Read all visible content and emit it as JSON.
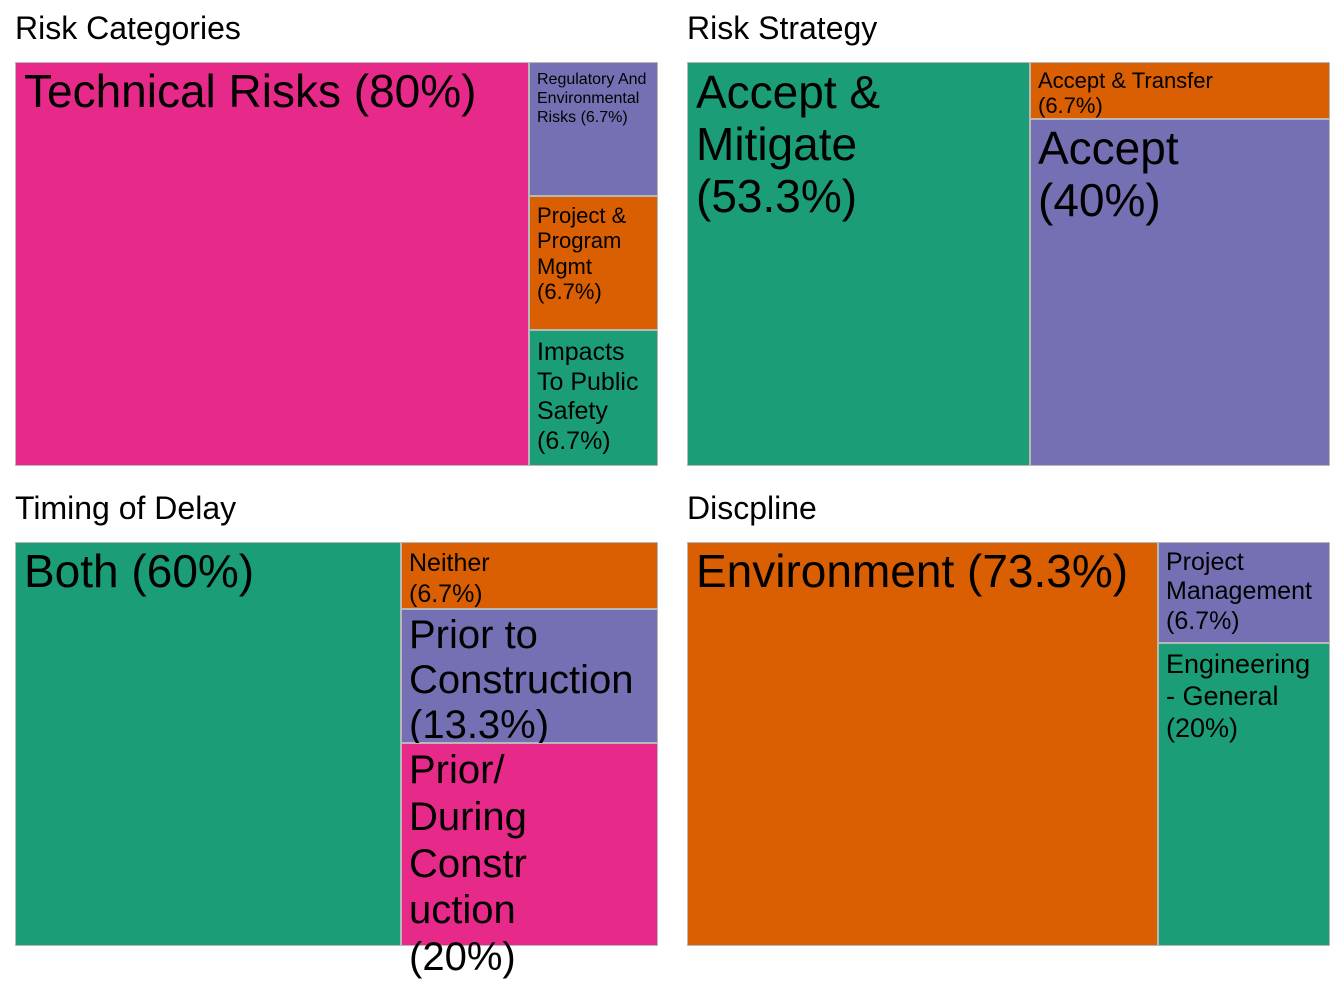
{
  "chart_data": [
    {
      "type": "treemap",
      "title": "Risk Categories",
      "tiles": [
        {
          "label": "Technical Risks",
          "value": 80,
          "value_label": "(80%)",
          "color": "#E7298A"
        },
        {
          "label": "Regulatory And Environmental Risks",
          "value": 6.7,
          "value_label": "(6.7%)",
          "color": "#7570B3"
        },
        {
          "label": "Project & Program Mgmt",
          "value": 6.7,
          "value_label": "(6.7%)",
          "color": "#D95F02"
        },
        {
          "label": "Impacts To Public Safety",
          "value": 6.7,
          "value_label": "(6.7%)",
          "color": "#1B9E77"
        }
      ]
    },
    {
      "type": "treemap",
      "title": "Risk Strategy",
      "tiles": [
        {
          "label": "Accept & Mitigate",
          "value": 53.3,
          "value_label": "(53.3%)",
          "color": "#1B9E77"
        },
        {
          "label": "Accept & Transfer",
          "value": 6.7,
          "value_label": "(6.7%)",
          "color": "#D95F02"
        },
        {
          "label": "Accept",
          "value": 40,
          "value_label": "(40%)",
          "color": "#7570B3"
        }
      ]
    },
    {
      "type": "treemap",
      "title": "Timing of Delay",
      "tiles": [
        {
          "label": "Both",
          "value": 60,
          "value_label": "(60%)",
          "color": "#1B9E77"
        },
        {
          "label": "Neither",
          "value": 6.7,
          "value_label": "(6.7%)",
          "color": "#D95F02"
        },
        {
          "label": "Prior to Construction",
          "value": 13.3,
          "value_label": "(13.3%)",
          "color": "#7570B3"
        },
        {
          "label": "Prior/ During Construction",
          "value": 20,
          "value_label": "(20%)",
          "color": "#E7298A"
        }
      ]
    },
    {
      "type": "treemap",
      "title": "Discpline",
      "tiles": [
        {
          "label": "Environment",
          "value": 73.3,
          "value_label": "(73.3%)",
          "color": "#D95F02"
        },
        {
          "label": "Project Management",
          "value": 6.7,
          "value_label": "(6.7%)",
          "color": "#7570B3"
        },
        {
          "label": "Engineering - General",
          "value": 20,
          "value_label": "(20%)",
          "color": "#1B9E77"
        }
      ]
    }
  ]
}
